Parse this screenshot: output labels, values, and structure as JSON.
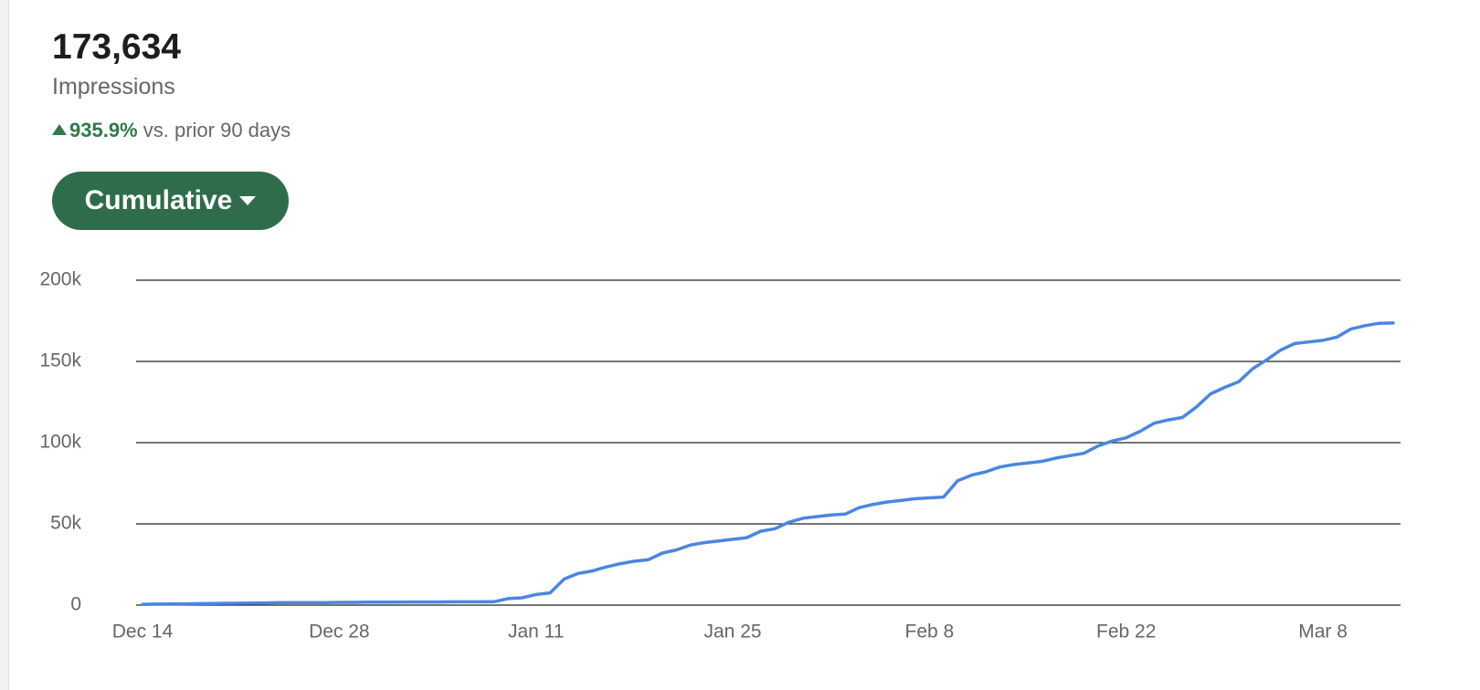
{
  "header": {
    "total": "173,634",
    "metric": "Impressions",
    "change": "935.9%",
    "comparison": "vs. prior 90 days"
  },
  "button": "Cumulative",
  "chart_data": {
    "type": "line",
    "color": "#4a86e0",
    "grid": true,
    "categories": [
      "Dec 14",
      null,
      null,
      null,
      null,
      null,
      null,
      null,
      null,
      null,
      null,
      null,
      null,
      null,
      "Dec 28",
      null,
      null,
      null,
      null,
      null,
      null,
      null,
      null,
      null,
      null,
      null,
      null,
      null,
      "Jan 11",
      null,
      null,
      null,
      null,
      null,
      null,
      null,
      null,
      null,
      null,
      null,
      null,
      null,
      "Jan 25",
      null,
      null,
      null,
      null,
      null,
      null,
      null,
      null,
      null,
      null,
      null,
      null,
      null,
      "Feb 8",
      null,
      null,
      null,
      null,
      null,
      null,
      null,
      null,
      null,
      null,
      null,
      null,
      null,
      "Feb 22",
      null,
      null,
      null,
      null,
      null,
      null,
      null,
      null,
      null,
      null,
      null,
      null,
      null,
      "Mar 8",
      null,
      null,
      null,
      null,
      null
    ],
    "values": [
      500,
      600,
      700,
      800,
      900,
      1000,
      1100,
      1200,
      1300,
      1400,
      1500,
      1500,
      1600,
      1600,
      1700,
      1700,
      1800,
      1800,
      1800,
      1900,
      1900,
      1900,
      2000,
      2000,
      2000,
      2100,
      4000,
      4500,
      6500,
      7500,
      16000,
      19500,
      21000,
      23500,
      25500,
      27000,
      28000,
      32000,
      34000,
      37000,
      38500,
      39500,
      40500,
      41500,
      45500,
      47000,
      51000,
      53500,
      54500,
      55500,
      56000,
      60000,
      62000,
      63500,
      64500,
      65500,
      66000,
      66500,
      76500,
      80000,
      82000,
      85000,
      86500,
      87500,
      88500,
      90500,
      92000,
      93500,
      98000,
      101000,
      103000,
      107000,
      112000,
      114000,
      115500,
      122000,
      130000,
      134000,
      137500,
      145500,
      151000,
      157000,
      161000,
      162000,
      163000,
      165000,
      170000,
      172000,
      173500,
      173634
    ],
    "ylim": [
      0,
      200000
    ],
    "yticks": [
      0,
      {
        "value": 50000,
        "label": "50k"
      },
      {
        "value": 100000,
        "label": "100k"
      },
      {
        "value": 150000,
        "label": "150k"
      },
      {
        "value": 200000,
        "label": "200k"
      }
    ]
  }
}
